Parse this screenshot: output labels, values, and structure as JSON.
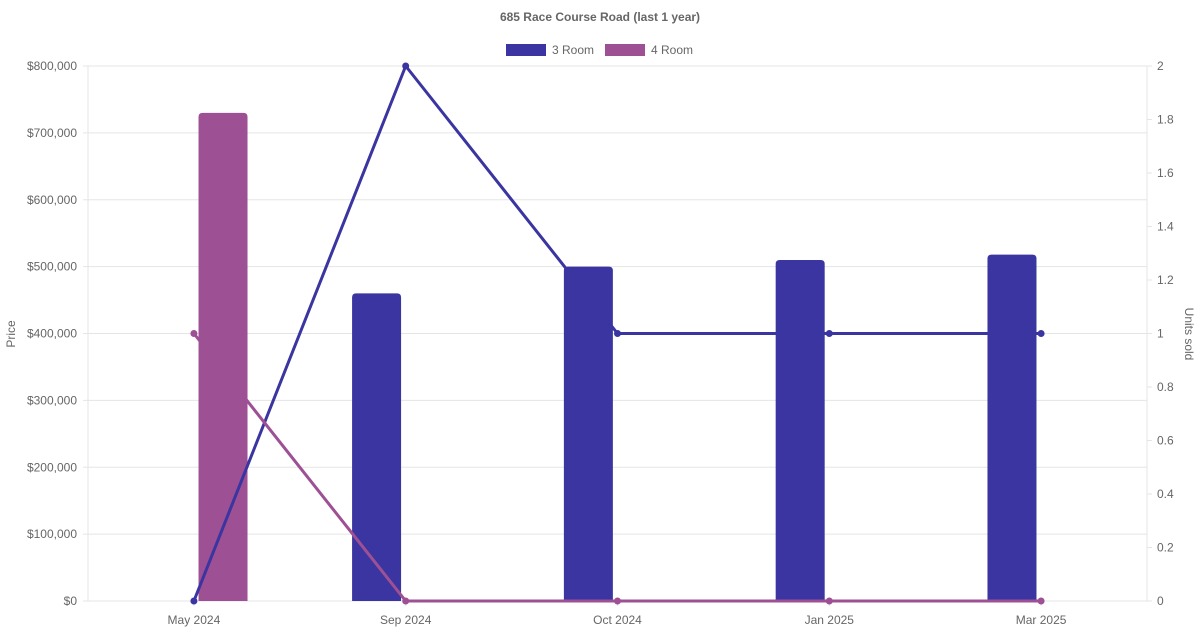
{
  "chart_data": {
    "type": "bar",
    "title": "685 Race Course Road (last 1 year)",
    "categories": [
      "May 2024",
      "Sep 2024",
      "Oct 2024",
      "Jan 2025",
      "Mar 2025"
    ],
    "y_left": {
      "label": "Price",
      "ylim": [
        0,
        800000
      ],
      "ticks": [
        "$0",
        "$100,000",
        "$200,000",
        "$300,000",
        "$400,000",
        "$500,000",
        "$600,000",
        "$700,000",
        "$800,000"
      ]
    },
    "y_right": {
      "label": "Units sold",
      "ylim": [
        0,
        2
      ],
      "ticks": [
        "0",
        "0.2",
        "0.4",
        "0.6",
        "0.8",
        "1",
        "1.2",
        "1.4",
        "1.6",
        "1.8",
        "2"
      ]
    },
    "grid": true,
    "legend_position": "top-center",
    "series": [
      {
        "name": "3 Room",
        "color": "#3a35a0",
        "price": [
          null,
          460000,
          500000,
          510000,
          518000
        ],
        "units": [
          0,
          2,
          1,
          1,
          1
        ]
      },
      {
        "name": "4 Room",
        "color": "#9e5094",
        "price": [
          730000,
          null,
          null,
          null,
          null
        ],
        "units": [
          1,
          0,
          0,
          0,
          0
        ]
      }
    ]
  }
}
